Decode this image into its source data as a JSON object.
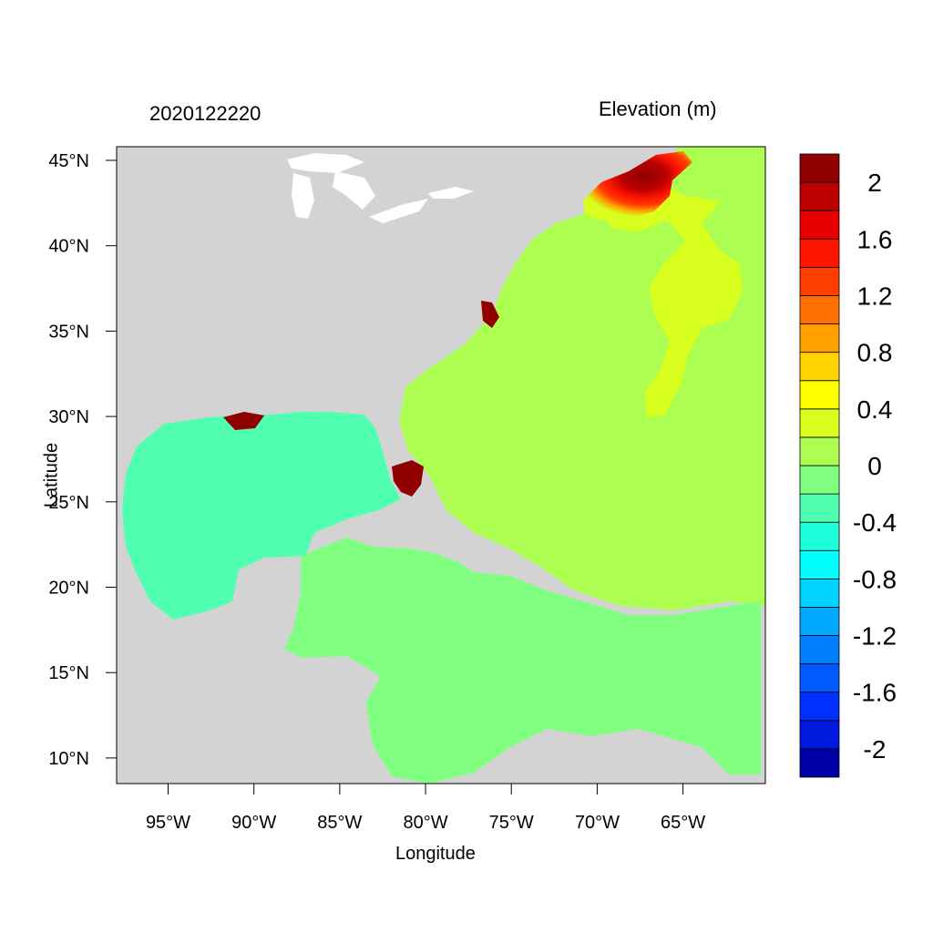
{
  "header": {
    "left_title": "2020122220",
    "right_title": "Elevation (m)"
  },
  "axes": {
    "xlabel": "Longitude",
    "ylabel": "Latitude",
    "x_ticks": [
      {
        "value": -95,
        "label": "95°W"
      },
      {
        "value": -90,
        "label": "90°W"
      },
      {
        "value": -85,
        "label": "85°W"
      },
      {
        "value": -80,
        "label": "80°W"
      },
      {
        "value": -75,
        "label": "75°W"
      },
      {
        "value": -70,
        "label": "70°W"
      },
      {
        "value": -65,
        "label": "65°W"
      }
    ],
    "y_ticks": [
      {
        "value": 45,
        "label": "45°N"
      },
      {
        "value": 40,
        "label": "40°N"
      },
      {
        "value": 35,
        "label": "35°N"
      },
      {
        "value": 30,
        "label": "30°N"
      },
      {
        "value": 25,
        "label": "25°N"
      },
      {
        "value": 20,
        "label": "20°N"
      },
      {
        "value": 15,
        "label": "15°N"
      },
      {
        "value": 10,
        "label": "10°N"
      }
    ],
    "xlim": [
      -98,
      -60.2
    ],
    "ylim": [
      8.5,
      45.8
    ]
  },
  "colorbar": {
    "bins": [
      "#0000a8",
      "#0019dc",
      "#0030ff",
      "#005aff",
      "#0080ff",
      "#00a8ff",
      "#00d2ff",
      "#00ffff",
      "#1fffdc",
      "#50ffb0",
      "#80ff80",
      "#acff50",
      "#d8ff1e",
      "#ffff00",
      "#ffd200",
      "#ffa000",
      "#ff7000",
      "#ff4000",
      "#ff1400",
      "#e80000",
      "#bc0000",
      "#900000"
    ],
    "labels": [
      "-2",
      "-1.6",
      "-1.2",
      "-0.8",
      "-0.4",
      "0",
      "0.4",
      "0.8",
      "1.2",
      "1.6",
      "2"
    ]
  },
  "map_colors": {
    "land": "#d3d3d3",
    "open_atlantic": "#acff50",
    "caribbean": "#80ff80",
    "gulf_of_mexico": "#50ffb0",
    "offshore_high": "#d8ff1e",
    "coastal_surge": "#900000"
  }
}
